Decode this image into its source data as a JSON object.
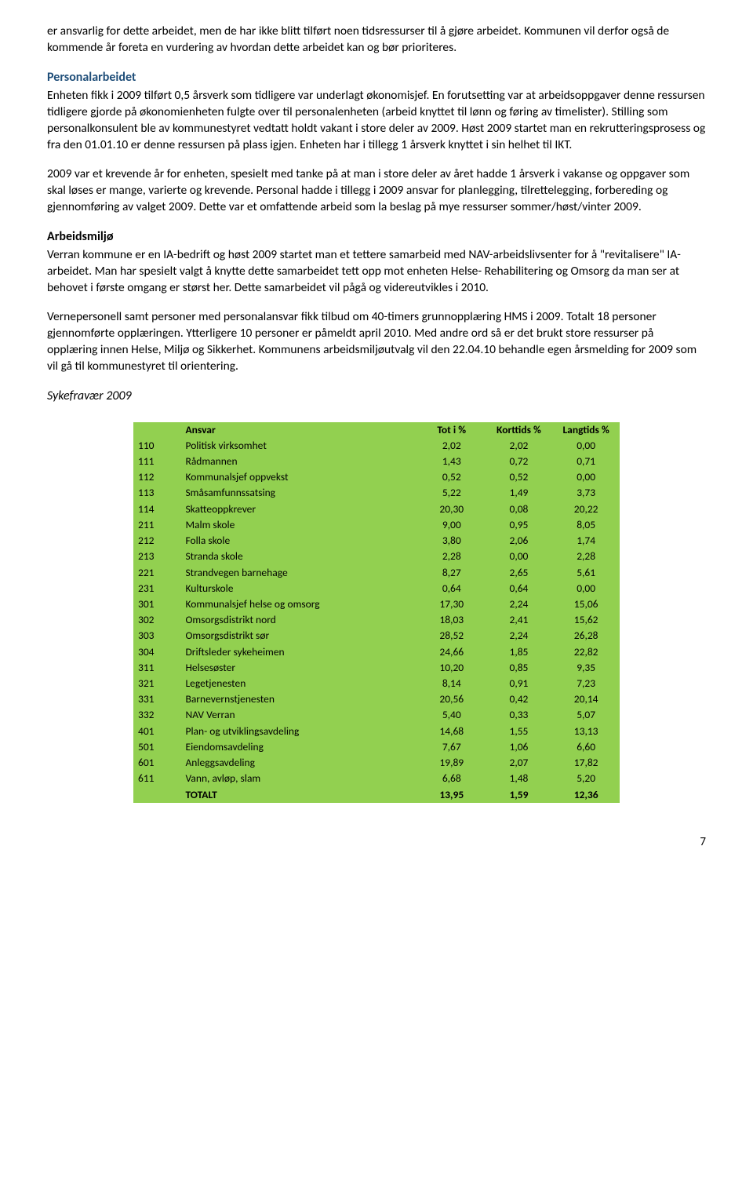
{
  "paragraphs": {
    "p1": "er ansvarlig for dette arbeidet, men de har ikke blitt tilført noen tidsressurser til å gjøre arbeidet. Kommunen vil derfor også de kommende år foreta en vurdering av hvordan dette arbeidet kan og bør prioriteres.",
    "h_personal": "Personalarbeidet",
    "p2": "Enheten fikk i 2009 tilført 0,5 årsverk som tidligere var underlagt økonomisjef. En forutsetting var at arbeidsoppgaver denne ressursen tidligere gjorde på økonomienheten fulgte over til personalenheten (arbeid knyttet til lønn og føring av timelister). Stilling som personalkonsulent ble av kommunestyret vedtatt holdt vakant i store deler av 2009. Høst 2009 startet man en rekrutteringsprosess og fra den 01.01.10 er denne ressursen på plass igjen. Enheten har i tillegg 1 årsverk knyttet i sin helhet til IKT.",
    "p3": "2009 var et krevende år for enheten, spesielt med tanke på at man i store deler av året hadde 1 årsverk i vakanse og oppgaver som skal løses er mange, varierte og krevende. Personal hadde i tillegg i 2009 ansvar for planlegging, tilrettelegging, forbereding og gjennomføring av valget 2009. Dette var et omfattende arbeid som la beslag på mye ressurser sommer/høst/vinter 2009.",
    "h_arbeidsmiljo": "Arbeidsmiljø",
    "p4": "Verran kommune er en IA-bedrift og høst 2009 startet man et tettere samarbeid med NAV-arbeidslivsenter for å \"revitalisere\" IA-arbeidet. Man har spesielt valgt å knytte dette samarbeidet tett opp mot enheten Helse- Rehabilitering og Omsorg da man ser at behovet i første omgang er størst her. Dette samarbeidet vil pågå og videreutvikles i 2010.",
    "p5": "Vernepersonell samt personer med personalansvar fikk tilbud om 40-timers grunnopplæring HMS i 2009. Totalt 18 personer gjennomførte opplæringen. Ytterligere 10 personer er påmeldt april 2010. Med andre ord så er det brukt store ressurser på opplæring innen Helse, Miljø og Sikkerhet. Kommunens arbeidsmiljøutvalg vil den 22.04.10 behandle egen årsmelding for 2009 som vil gå til kommunestyret til orientering.",
    "h_sykefravaer": "Sykefravær 2009"
  },
  "table": {
    "background_color": "#92d050",
    "headers": {
      "code": "",
      "ansvar": "Ansvar",
      "tot": "Tot i %",
      "kort": "Korttids %",
      "lang": "Langtids %"
    },
    "rows": [
      {
        "code": "110",
        "name": "Politisk virksomhet",
        "tot": "2,02",
        "kort": "2,02",
        "lang": "0,00"
      },
      {
        "code": "111",
        "name": "Rådmannen",
        "tot": "1,43",
        "kort": "0,72",
        "lang": "0,71"
      },
      {
        "code": "112",
        "name": "Kommunalsjef oppvekst",
        "tot": "0,52",
        "kort": "0,52",
        "lang": "0,00"
      },
      {
        "code": "113",
        "name": "Småsamfunnssatsing",
        "tot": "5,22",
        "kort": "1,49",
        "lang": "3,73"
      },
      {
        "code": "114",
        "name": "Skatteoppkrever",
        "tot": "20,30",
        "kort": "0,08",
        "lang": "20,22"
      },
      {
        "code": "211",
        "name": "Malm skole",
        "tot": "9,00",
        "kort": "0,95",
        "lang": "8,05"
      },
      {
        "code": "212",
        "name": "Folla skole",
        "tot": "3,80",
        "kort": "2,06",
        "lang": "1,74"
      },
      {
        "code": "213",
        "name": "Stranda skole",
        "tot": "2,28",
        "kort": "0,00",
        "lang": "2,28"
      },
      {
        "code": "221",
        "name": "Strandvegen barnehage",
        "tot": "8,27",
        "kort": "2,65",
        "lang": "5,61"
      },
      {
        "code": "231",
        "name": "Kulturskole",
        "tot": "0,64",
        "kort": "0,64",
        "lang": "0,00"
      },
      {
        "code": "301",
        "name": "Kommunalsjef helse og omsorg",
        "tot": "17,30",
        "kort": "2,24",
        "lang": "15,06"
      },
      {
        "code": "302",
        "name": "Omsorgsdistrikt nord",
        "tot": "18,03",
        "kort": "2,41",
        "lang": "15,62"
      },
      {
        "code": "303",
        "name": "Omsorgsdistrikt sør",
        "tot": "28,52",
        "kort": "2,24",
        "lang": "26,28"
      },
      {
        "code": "304",
        "name": "Driftsleder sykeheimen",
        "tot": "24,66",
        "kort": "1,85",
        "lang": "22,82"
      },
      {
        "code": "311",
        "name": "Helsesøster",
        "tot": "10,20",
        "kort": "0,85",
        "lang": "9,35"
      },
      {
        "code": "321",
        "name": "Legetjenesten",
        "tot": "8,14",
        "kort": "0,91",
        "lang": "7,23"
      },
      {
        "code": "331",
        "name": "Barnevernstjenesten",
        "tot": "20,56",
        "kort": "0,42",
        "lang": "20,14"
      },
      {
        "code": "332",
        "name": "NAV Verran",
        "tot": "5,40",
        "kort": "0,33",
        "lang": "5,07"
      },
      {
        "code": "401",
        "name": "Plan- og utviklingsavdeling",
        "tot": "14,68",
        "kort": "1,55",
        "lang": "13,13"
      },
      {
        "code": "501",
        "name": "Eiendomsavdeling",
        "tot": "7,67",
        "kort": "1,06",
        "lang": "6,60"
      },
      {
        "code": "601",
        "name": "Anleggsavdeling",
        "tot": "19,89",
        "kort": "2,07",
        "lang": "17,82"
      },
      {
        "code": "611",
        "name": "Vann, avløp, slam",
        "tot": "6,68",
        "kort": "1,48",
        "lang": "5,20"
      }
    ],
    "total": {
      "code": "",
      "name": "TOTALT",
      "tot": "13,95",
      "kort": "1,59",
      "lang": "12,36"
    }
  },
  "page_number": "7"
}
